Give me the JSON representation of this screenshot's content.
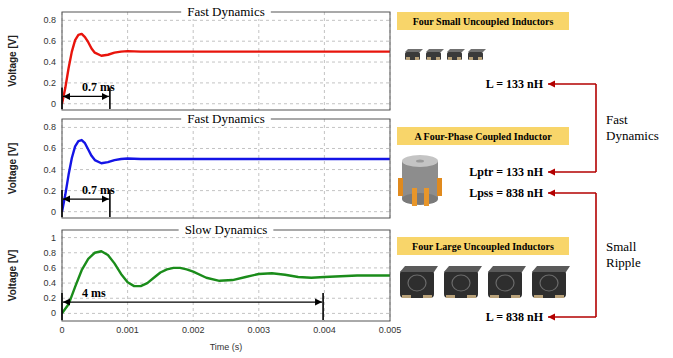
{
  "chart_data": [
    {
      "type": "line",
      "title": "Fast Dynamics",
      "ylabel": "Voltage [V]",
      "x": [
        0,
        5e-05,
        0.0001,
        0.00015,
        0.0002,
        0.00025,
        0.0003,
        0.00035,
        0.0004,
        0.00045,
        0.0005,
        0.0006,
        0.0007,
        0.0008,
        0.0009,
        0.001,
        0.0012,
        0.0014,
        0.0015,
        0.002,
        0.003,
        0.004,
        0.005
      ],
      "series": [
        {
          "name": "Four Small Uncoupled Inductors",
          "color": "#e8140c",
          "values": [
            0,
            0.15,
            0.34,
            0.5,
            0.61,
            0.66,
            0.67,
            0.64,
            0.59,
            0.53,
            0.49,
            0.46,
            0.47,
            0.49,
            0.5,
            0.505,
            0.5,
            0.5,
            0.5,
            0.5,
            0.5,
            0.5,
            0.5
          ]
        }
      ],
      "xlim": [
        0,
        0.005
      ],
      "xticks": [
        0,
        0.001,
        0.002,
        0.003,
        0.004,
        0.005
      ],
      "ylim": [
        -0.06,
        0.88
      ],
      "yticks": [
        0,
        0.2,
        0.4,
        0.6,
        0.8
      ],
      "grid": true,
      "tick_labels": "y",
      "annotations": [
        {
          "text": "0.7 ms",
          "x0": 0,
          "x1": 0.00073,
          "y": 0.07
        }
      ]
    },
    {
      "type": "line",
      "title": "Fast Dynamics",
      "ylabel": "Voltage [V]",
      "x": [
        0,
        5e-05,
        0.0001,
        0.00015,
        0.0002,
        0.00025,
        0.0003,
        0.00035,
        0.0004,
        0.00045,
        0.0005,
        0.0006,
        0.0007,
        0.0008,
        0.0009,
        0.001,
        0.0012,
        0.0014,
        0.0015,
        0.002,
        0.003,
        0.004,
        0.005
      ],
      "series": [
        {
          "name": "A Four-Phase Coupled Inductor",
          "color": "#1414e6",
          "values": [
            0,
            0.16,
            0.35,
            0.51,
            0.62,
            0.67,
            0.68,
            0.65,
            0.59,
            0.53,
            0.49,
            0.46,
            0.47,
            0.49,
            0.5,
            0.505,
            0.5,
            0.5,
            0.5,
            0.5,
            0.5,
            0.5,
            0.5
          ]
        }
      ],
      "xlim": [
        0,
        0.005
      ],
      "xticks": [
        0,
        0.001,
        0.002,
        0.003,
        0.004,
        0.005
      ],
      "ylim": [
        -0.06,
        0.88
      ],
      "yticks": [
        0,
        0.2,
        0.4,
        0.6,
        0.8
      ],
      "grid": true,
      "tick_labels": "y",
      "annotations": [
        {
          "text": "0.7 ms",
          "x0": 0,
          "x1": 0.00073,
          "y": 0.12
        }
      ]
    },
    {
      "type": "line",
      "title": "Slow Dynamics",
      "ylabel": "Voltage [V]",
      "xlabel": "Time (s)",
      "x": [
        0,
        0.0001,
        0.0002,
        0.0003,
        0.0004,
        0.0005,
        0.0006,
        0.0007,
        0.0008,
        0.0009,
        0.001,
        0.0011,
        0.0012,
        0.0013,
        0.0014,
        0.0015,
        0.0016,
        0.0017,
        0.0018,
        0.0019,
        0.002,
        0.0022,
        0.0024,
        0.0026,
        0.0028,
        0.003,
        0.0032,
        0.0034,
        0.0036,
        0.0038,
        0.004,
        0.0045,
        0.005
      ],
      "series": [
        {
          "name": "Four Large Uncoupled Inductors",
          "color": "#1a8c1a",
          "values": [
            0,
            0.12,
            0.35,
            0.57,
            0.72,
            0.8,
            0.82,
            0.77,
            0.66,
            0.52,
            0.41,
            0.36,
            0.36,
            0.4,
            0.47,
            0.54,
            0.58,
            0.6,
            0.6,
            0.58,
            0.55,
            0.47,
            0.43,
            0.44,
            0.48,
            0.52,
            0.53,
            0.51,
            0.48,
            0.47,
            0.48,
            0.5,
            0.5
          ]
        }
      ],
      "xlim": [
        0,
        0.005
      ],
      "xticks": [
        0,
        0.001,
        0.002,
        0.003,
        0.004,
        0.005
      ],
      "ylim": [
        -0.1,
        1.1
      ],
      "yticks": [
        0,
        0.2,
        0.4,
        0.6,
        0.8,
        1
      ],
      "grid": true,
      "annotations": [
        {
          "text": "4 ms",
          "x0": 0,
          "x1": 0.00398,
          "y": 0.15
        }
      ]
    }
  ],
  "diagram": {
    "options": [
      {
        "label": "Four Small Uncoupled Inductors",
        "values": [
          "L = 133 nH"
        ]
      },
      {
        "label": "A Four-Phase Coupled Inductor",
        "values": [
          "Lptr = 133 nH",
          "Lpss = 838 nH"
        ]
      },
      {
        "label": "Four Large Uncoupled Inductors",
        "values": [
          "L = 838 nH"
        ]
      }
    ],
    "brackets": [
      {
        "lines": [
          "Fast",
          "Dynamics"
        ]
      },
      {
        "lines": [
          "Small",
          "Ripple"
        ]
      }
    ]
  }
}
